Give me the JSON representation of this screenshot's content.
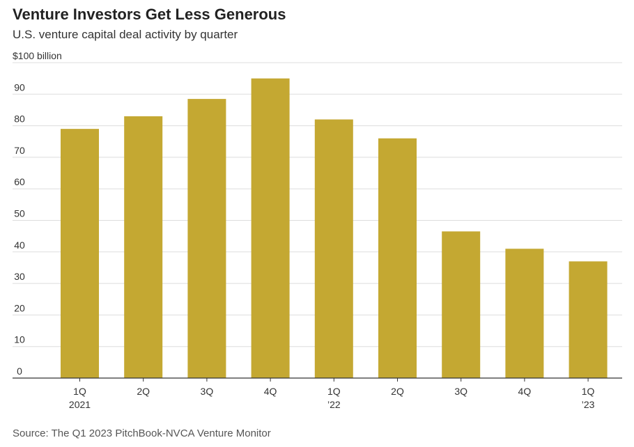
{
  "title": "Venture Investors Get Less Generous",
  "subtitle": "U.S. venture capital deal activity by quarter",
  "source": "Source: The Q1 2023 PitchBook-NVCA Venture Monitor",
  "colors": {
    "bar": "#c4a832",
    "grid": "#dddddd",
    "axis": "#333333",
    "text": "#333333"
  },
  "chart_data": {
    "type": "bar",
    "title": "Venture Investors Get Less Generous",
    "subtitle": "U.S. venture capital deal activity by quarter",
    "ylabel": "$100 billion",
    "ylim": [
      0,
      100
    ],
    "yticks": [
      0,
      10,
      20,
      30,
      40,
      50,
      60,
      70,
      80,
      90
    ],
    "top_tick_label": "$100 billion",
    "grid": true,
    "categories": [
      "1Q 2021",
      "2Q",
      "3Q",
      "4Q",
      "1Q '22",
      "2Q",
      "3Q",
      "4Q",
      "1Q '23"
    ],
    "category_labels": [
      [
        "1Q",
        "2021"
      ],
      [
        "2Q"
      ],
      [
        "3Q"
      ],
      [
        "4Q"
      ],
      [
        "1Q",
        "’22"
      ],
      [
        "2Q"
      ],
      [
        "3Q"
      ],
      [
        "4Q"
      ],
      [
        "1Q",
        "’23"
      ]
    ],
    "values": [
      79,
      83,
      88.5,
      95,
      82,
      76,
      46.5,
      41,
      37
    ]
  }
}
